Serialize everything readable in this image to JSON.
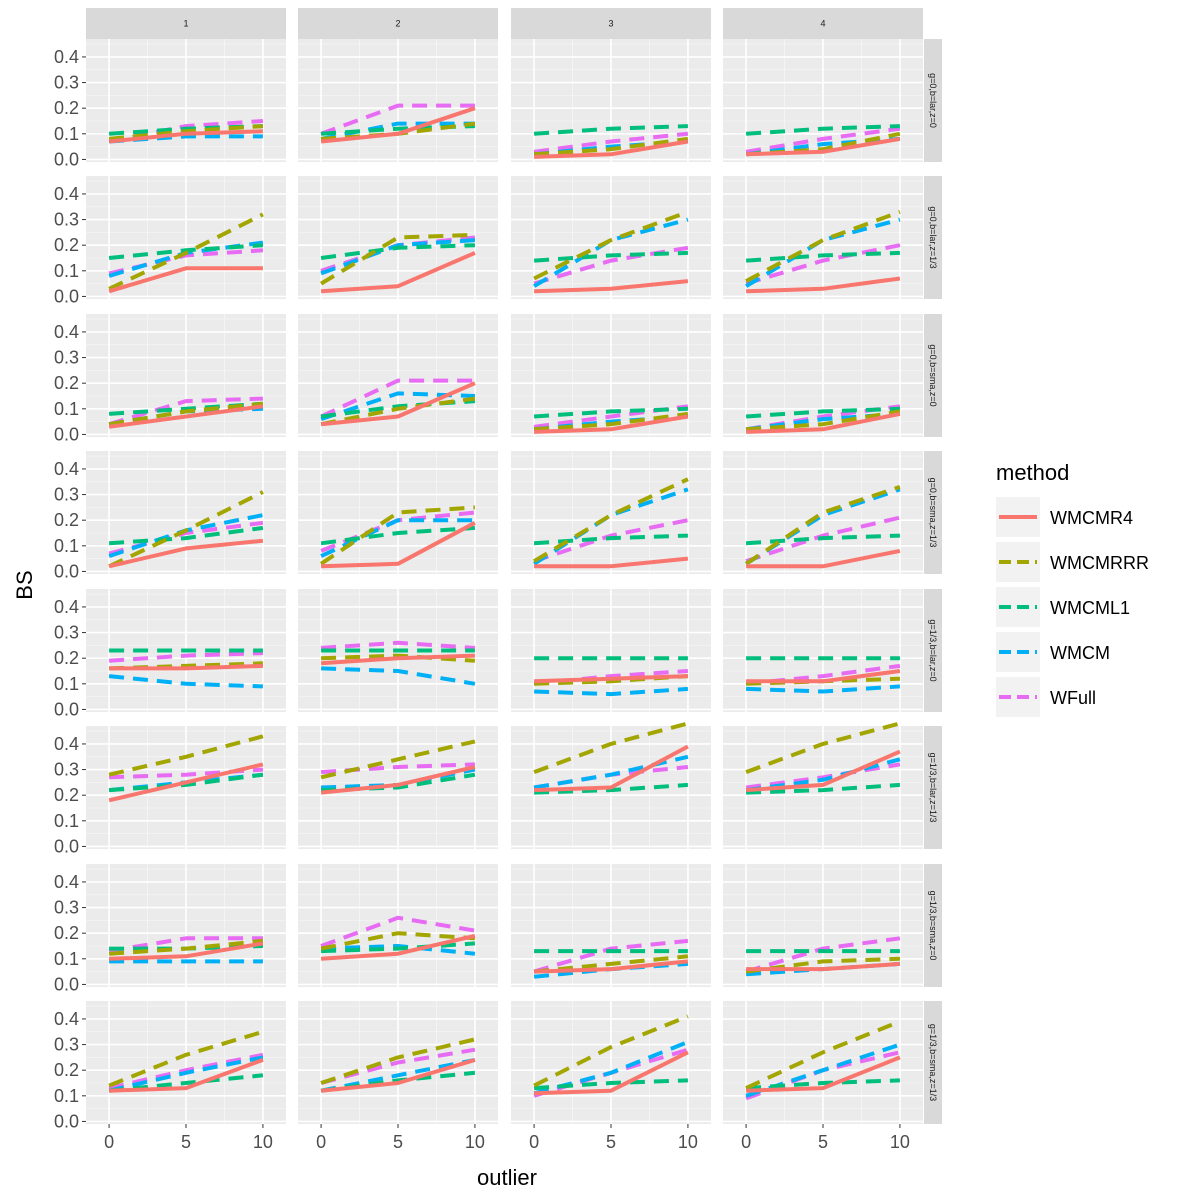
{
  "chart_data": {
    "type": "line",
    "facet_cols": [
      "1",
      "2",
      "3",
      "4"
    ],
    "facet_rows": [
      "g=0,b=lar,z=0",
      "g=0,b=lar,z=1/3",
      "g=0,b=sma,z=0",
      "g=0,b=sma,z=1/3",
      "g=1/3,b=lar,z=0",
      "g=1/3,b=lar,z=1/3",
      "g=1/3,b=sma,z=0",
      "g=1/3,b=sma,z=1/3"
    ],
    "x": [
      0,
      5,
      10
    ],
    "xticks": [
      "0",
      "5",
      "10"
    ],
    "xlim": [
      -1.5,
      11.5
    ],
    "ylim": [
      -0.01,
      0.47
    ],
    "yticks": [
      "0.0",
      "0.1",
      "0.2",
      "0.3",
      "0.4"
    ],
    "xlabel": "outlier",
    "ylabel": "BS",
    "grid": true,
    "legend": {
      "title": "method",
      "position": "right",
      "entries": [
        "WMCMR4",
        "WMCMRRR",
        "WMCML1",
        "WMCM",
        "WFull"
      ]
    },
    "series": [
      {
        "name": "WMCMR4",
        "color": "#F8766D",
        "dash": "solid",
        "panels": [
          [
            [
              0.07,
              0.1,
              0.11
            ],
            [
              0.07,
              0.1,
              0.2
            ],
            [
              0.01,
              0.02,
              0.07
            ],
            [
              0.02,
              0.03,
              0.08
            ]
          ],
          [
            [
              0.02,
              0.11,
              0.11
            ],
            [
              0.02,
              0.04,
              0.17
            ],
            [
              0.02,
              0.03,
              0.06
            ],
            [
              0.02,
              0.03,
              0.07
            ]
          ],
          [
            [
              0.03,
              0.07,
              0.11
            ],
            [
              0.04,
              0.07,
              0.2
            ],
            [
              0.01,
              0.02,
              0.07
            ],
            [
              0.01,
              0.02,
              0.08
            ]
          ],
          [
            [
              0.02,
              0.09,
              0.12
            ],
            [
              0.02,
              0.03,
              0.19
            ],
            [
              0.02,
              0.02,
              0.05
            ],
            [
              0.02,
              0.02,
              0.08
            ]
          ],
          [
            [
              0.16,
              0.16,
              0.17
            ],
            [
              0.18,
              0.2,
              0.21
            ],
            [
              0.11,
              0.12,
              0.13
            ],
            [
              0.11,
              0.11,
              0.15
            ]
          ],
          [
            [
              0.18,
              0.25,
              0.32
            ],
            [
              0.21,
              0.24,
              0.31
            ],
            [
              0.22,
              0.23,
              0.39
            ],
            [
              0.22,
              0.24,
              0.37
            ]
          ],
          [
            [
              0.1,
              0.11,
              0.16
            ],
            [
              0.1,
              0.12,
              0.19
            ],
            [
              0.05,
              0.06,
              0.09
            ],
            [
              0.06,
              0.06,
              0.08
            ]
          ],
          [
            [
              0.12,
              0.13,
              0.24
            ],
            [
              0.12,
              0.15,
              0.24
            ],
            [
              0.11,
              0.12,
              0.27
            ],
            [
              0.12,
              0.13,
              0.25
            ]
          ]
        ]
      },
      {
        "name": "WMCMRRR",
        "color": "#A3A500",
        "dash": "long",
        "panels": [
          [
            [
              0.08,
              0.11,
              0.13
            ],
            [
              0.08,
              0.1,
              0.14
            ],
            [
              0.02,
              0.04,
              0.08
            ],
            [
              0.02,
              0.04,
              0.1
            ]
          ],
          [
            [
              0.03,
              0.17,
              0.32
            ],
            [
              0.05,
              0.23,
              0.24
            ],
            [
              0.07,
              0.22,
              0.33
            ],
            [
              0.06,
              0.22,
              0.33
            ]
          ],
          [
            [
              0.04,
              0.09,
              0.12
            ],
            [
              0.04,
              0.1,
              0.14
            ],
            [
              0.02,
              0.04,
              0.08
            ],
            [
              0.02,
              0.04,
              0.09
            ]
          ],
          [
            [
              0.02,
              0.16,
              0.31
            ],
            [
              0.03,
              0.23,
              0.25
            ],
            [
              0.04,
              0.22,
              0.36
            ],
            [
              0.03,
              0.23,
              0.33
            ]
          ],
          [
            [
              0.16,
              0.17,
              0.18
            ],
            [
              0.2,
              0.21,
              0.19
            ],
            [
              0.1,
              0.11,
              0.13
            ],
            [
              0.1,
              0.11,
              0.12
            ]
          ],
          [
            [
              0.28,
              0.35,
              0.43
            ],
            [
              0.27,
              0.34,
              0.41
            ],
            [
              0.29,
              0.4,
              0.48
            ],
            [
              0.29,
              0.4,
              0.48
            ]
          ],
          [
            [
              0.12,
              0.14,
              0.17
            ],
            [
              0.14,
              0.2,
              0.18
            ],
            [
              0.05,
              0.08,
              0.11
            ],
            [
              0.05,
              0.09,
              0.1
            ]
          ],
          [
            [
              0.14,
              0.26,
              0.35
            ],
            [
              0.15,
              0.25,
              0.32
            ],
            [
              0.14,
              0.29,
              0.41
            ],
            [
              0.13,
              0.27,
              0.39
            ]
          ]
        ]
      },
      {
        "name": "WMCML1",
        "color": "#00BF7D",
        "dash": "long",
        "panels": [
          [
            [
              0.1,
              0.12,
              0.13
            ],
            [
              0.1,
              0.12,
              0.13
            ],
            [
              0.1,
              0.12,
              0.13
            ],
            [
              0.1,
              0.12,
              0.13
            ]
          ],
          [
            [
              0.15,
              0.18,
              0.2
            ],
            [
              0.15,
              0.19,
              0.2
            ],
            [
              0.14,
              0.16,
              0.17
            ],
            [
              0.14,
              0.16,
              0.17
            ]
          ],
          [
            [
              0.08,
              0.1,
              0.12
            ],
            [
              0.07,
              0.11,
              0.13
            ],
            [
              0.07,
              0.09,
              0.1
            ],
            [
              0.07,
              0.09,
              0.1
            ]
          ],
          [
            [
              0.11,
              0.13,
              0.17
            ],
            [
              0.11,
              0.15,
              0.17
            ],
            [
              0.11,
              0.13,
              0.14
            ],
            [
              0.11,
              0.13,
              0.14
            ]
          ],
          [
            [
              0.23,
              0.23,
              0.23
            ],
            [
              0.23,
              0.23,
              0.23
            ],
            [
              0.2,
              0.2,
              0.2
            ],
            [
              0.2,
              0.2,
              0.2
            ]
          ],
          [
            [
              0.22,
              0.24,
              0.28
            ],
            [
              0.22,
              0.23,
              0.28
            ],
            [
              0.21,
              0.22,
              0.24
            ],
            [
              0.21,
              0.22,
              0.24
            ]
          ],
          [
            [
              0.14,
              0.14,
              0.15
            ],
            [
              0.13,
              0.14,
              0.16
            ],
            [
              0.13,
              0.13,
              0.13
            ],
            [
              0.13,
              0.13,
              0.13
            ]
          ],
          [
            [
              0.12,
              0.15,
              0.18
            ],
            [
              0.12,
              0.16,
              0.19
            ],
            [
              0.13,
              0.15,
              0.16
            ],
            [
              0.13,
              0.15,
              0.16
            ]
          ]
        ]
      },
      {
        "name": "WMCM",
        "color": "#00B0F6",
        "dash": "long",
        "panels": [
          [
            [
              0.07,
              0.09,
              0.09
            ],
            [
              0.08,
              0.14,
              0.14
            ],
            [
              0.02,
              0.05,
              0.07
            ],
            [
              0.02,
              0.06,
              0.08
            ]
          ],
          [
            [
              0.08,
              0.17,
              0.21
            ],
            [
              0.09,
              0.2,
              0.22
            ],
            [
              0.04,
              0.22,
              0.3
            ],
            [
              0.04,
              0.22,
              0.3
            ]
          ],
          [
            [
              0.04,
              0.09,
              0.1
            ],
            [
              0.06,
              0.16,
              0.15
            ],
            [
              0.02,
              0.05,
              0.07
            ],
            [
              0.02,
              0.06,
              0.08
            ]
          ],
          [
            [
              0.06,
              0.16,
              0.22
            ],
            [
              0.06,
              0.2,
              0.2
            ],
            [
              0.03,
              0.22,
              0.32
            ],
            [
              0.03,
              0.22,
              0.32
            ]
          ],
          [
            [
              0.13,
              0.1,
              0.09
            ],
            [
              0.16,
              0.15,
              0.1
            ],
            [
              0.07,
              0.06,
              0.08
            ],
            [
              0.08,
              0.07,
              0.09
            ]
          ],
          [
            [
              0.22,
              0.25,
              0.28
            ],
            [
              0.23,
              0.24,
              0.3
            ],
            [
              0.23,
              0.28,
              0.35
            ],
            [
              0.22,
              0.26,
              0.34
            ]
          ],
          [
            [
              0.09,
              0.09,
              0.09
            ],
            [
              0.14,
              0.15,
              0.12
            ],
            [
              0.03,
              0.06,
              0.08
            ],
            [
              0.04,
              0.06,
              0.08
            ]
          ],
          [
            [
              0.12,
              0.19,
              0.25
            ],
            [
              0.12,
              0.18,
              0.24
            ],
            [
              0.11,
              0.19,
              0.31
            ],
            [
              0.1,
              0.2,
              0.3
            ]
          ]
        ]
      },
      {
        "name": "WFull",
        "color": "#E76BF3",
        "dash": "long",
        "panels": [
          [
            [
              0.07,
              0.13,
              0.15
            ],
            [
              0.1,
              0.21,
              0.21
            ],
            [
              0.03,
              0.07,
              0.1
            ],
            [
              0.03,
              0.08,
              0.12
            ]
          ],
          [
            [
              0.09,
              0.16,
              0.18
            ],
            [
              0.1,
              0.2,
              0.23
            ],
            [
              0.05,
              0.14,
              0.19
            ],
            [
              0.05,
              0.14,
              0.2
            ]
          ],
          [
            [
              0.04,
              0.13,
              0.14
            ],
            [
              0.07,
              0.21,
              0.21
            ],
            [
              0.03,
              0.07,
              0.11
            ],
            [
              0.02,
              0.07,
              0.11
            ]
          ],
          [
            [
              0.07,
              0.15,
              0.19
            ],
            [
              0.08,
              0.2,
              0.23
            ],
            [
              0.04,
              0.14,
              0.2
            ],
            [
              0.04,
              0.14,
              0.21
            ]
          ],
          [
            [
              0.19,
              0.21,
              0.22
            ],
            [
              0.24,
              0.26,
              0.24
            ],
            [
              0.1,
              0.13,
              0.15
            ],
            [
              0.1,
              0.13,
              0.17
            ]
          ],
          [
            [
              0.27,
              0.28,
              0.3
            ],
            [
              0.29,
              0.31,
              0.32
            ],
            [
              0.23,
              0.28,
              0.31
            ],
            [
              0.23,
              0.27,
              0.32
            ]
          ],
          [
            [
              0.13,
              0.18,
              0.18
            ],
            [
              0.15,
              0.26,
              0.21
            ],
            [
              0.05,
              0.14,
              0.17
            ],
            [
              0.05,
              0.14,
              0.18
            ]
          ],
          [
            [
              0.13,
              0.2,
              0.26
            ],
            [
              0.15,
              0.23,
              0.28
            ],
            [
              0.1,
              0.19,
              0.28
            ],
            [
              0.09,
              0.2,
              0.27
            ]
          ]
        ]
      }
    ]
  }
}
